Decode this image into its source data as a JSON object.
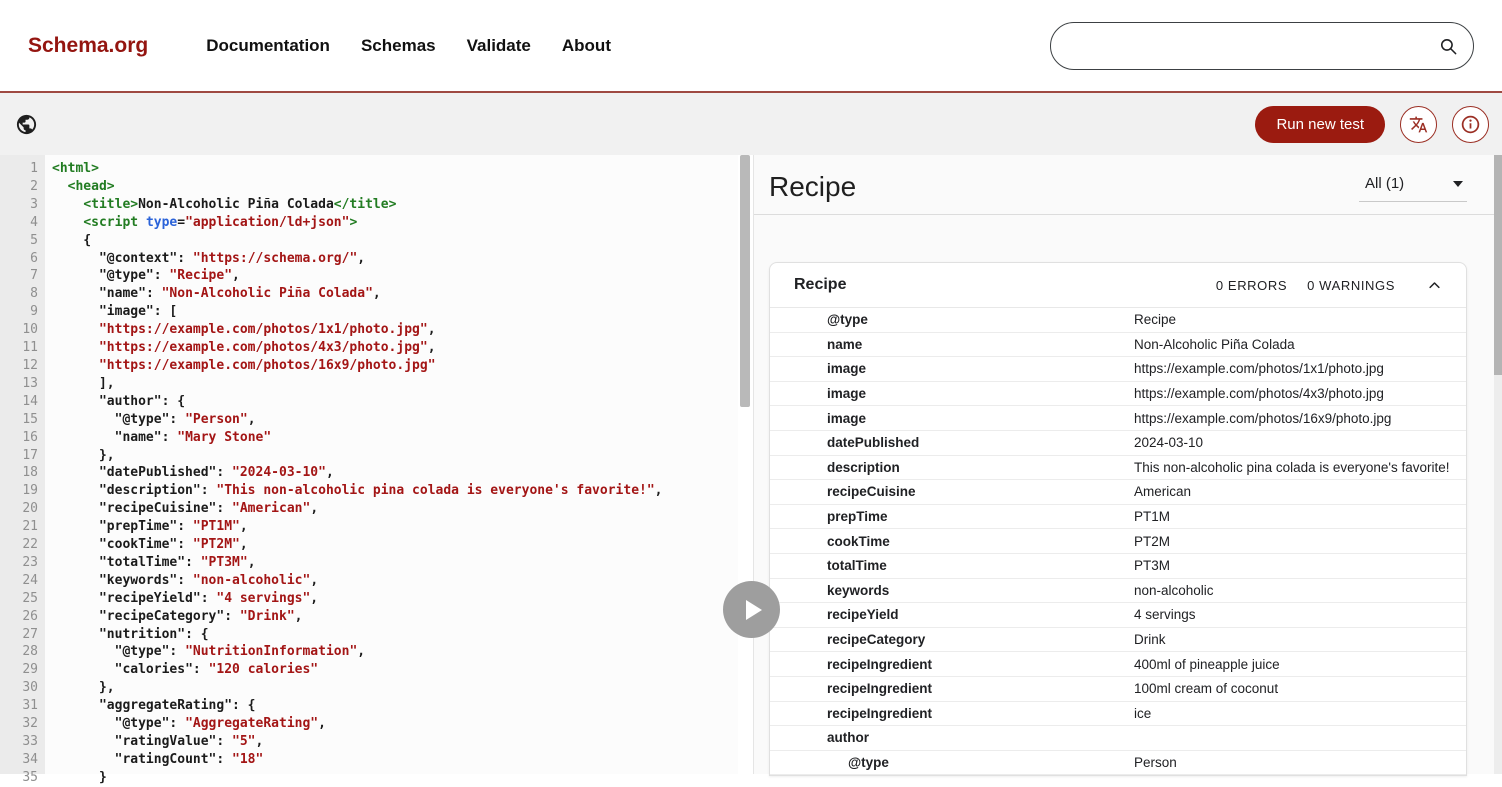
{
  "colors": {
    "brand_red": "#941510",
    "button_red": "#9b1b10",
    "code_tag_green": "#227c22",
    "code_attr_blue": "#2b63d9",
    "code_string_red": "#a31515",
    "toolbar_gray": "#f1f1f1"
  },
  "header": {
    "logo": "Schema.org",
    "nav": [
      "Documentation",
      "Schemas",
      "Validate",
      "About"
    ],
    "search": {
      "value": "",
      "placeholder": ""
    }
  },
  "toolbar": {
    "run_button": "Run new test",
    "language_icon": "translate-icon",
    "info_icon": "info-icon",
    "globe_icon": "globe-icon"
  },
  "editor": {
    "lines": [
      {
        "n": 1,
        "s": [
          [
            "tag",
            "<html>"
          ]
        ]
      },
      {
        "n": 2,
        "s": [
          [
            "tag",
            "  <head>"
          ]
        ]
      },
      {
        "n": 3,
        "s": [
          [
            "pun",
            "    "
          ],
          [
            "tag",
            "<title>"
          ],
          [
            "txt",
            "Non-Alcoholic Piña Colada"
          ],
          [
            "tag",
            "</title>"
          ]
        ]
      },
      {
        "n": 4,
        "s": [
          [
            "pun",
            "    "
          ],
          [
            "tag",
            "<script "
          ],
          [
            "attr",
            "type"
          ],
          [
            "pun",
            "="
          ],
          [
            "str",
            "\"application/ld+json\""
          ],
          [
            "tag",
            ">"
          ]
        ]
      },
      {
        "n": 5,
        "s": [
          [
            "pun",
            "    {"
          ]
        ]
      },
      {
        "n": 6,
        "s": [
          [
            "pun",
            "      "
          ],
          [
            "key",
            "\"@context\""
          ],
          [
            "pun",
            ": "
          ],
          [
            "str",
            "\"https://schema.org/\""
          ],
          [
            "pun",
            ","
          ]
        ]
      },
      {
        "n": 7,
        "s": [
          [
            "pun",
            "      "
          ],
          [
            "key",
            "\"@type\""
          ],
          [
            "pun",
            ": "
          ],
          [
            "str",
            "\"Recipe\""
          ],
          [
            "pun",
            ","
          ]
        ]
      },
      {
        "n": 8,
        "s": [
          [
            "pun",
            "      "
          ],
          [
            "key",
            "\"name\""
          ],
          [
            "pun",
            ": "
          ],
          [
            "str",
            "\"Non-Alcoholic Piña Colada\""
          ],
          [
            "pun",
            ","
          ]
        ]
      },
      {
        "n": 9,
        "s": [
          [
            "pun",
            "      "
          ],
          [
            "key",
            "\"image\""
          ],
          [
            "pun",
            ": ["
          ]
        ]
      },
      {
        "n": 10,
        "s": [
          [
            "pun",
            "      "
          ],
          [
            "str",
            "\"https://example.com/photos/1x1/photo.jpg\""
          ],
          [
            "pun",
            ","
          ]
        ]
      },
      {
        "n": 11,
        "s": [
          [
            "pun",
            "      "
          ],
          [
            "str",
            "\"https://example.com/photos/4x3/photo.jpg\""
          ],
          [
            "pun",
            ","
          ]
        ]
      },
      {
        "n": 12,
        "s": [
          [
            "pun",
            "      "
          ],
          [
            "str",
            "\"https://example.com/photos/16x9/photo.jpg\""
          ]
        ]
      },
      {
        "n": 13,
        "s": [
          [
            "pun",
            "      ],"
          ]
        ]
      },
      {
        "n": 14,
        "s": [
          [
            "pun",
            "      "
          ],
          [
            "key",
            "\"author\""
          ],
          [
            "pun",
            ": {"
          ]
        ]
      },
      {
        "n": 15,
        "s": [
          [
            "pun",
            "        "
          ],
          [
            "key",
            "\"@type\""
          ],
          [
            "pun",
            ": "
          ],
          [
            "str",
            "\"Person\""
          ],
          [
            "pun",
            ","
          ]
        ]
      },
      {
        "n": 16,
        "s": [
          [
            "pun",
            "        "
          ],
          [
            "key",
            "\"name\""
          ],
          [
            "pun",
            ": "
          ],
          [
            "str",
            "\"Mary Stone\""
          ]
        ]
      },
      {
        "n": 17,
        "s": [
          [
            "pun",
            "      },"
          ]
        ]
      },
      {
        "n": 18,
        "s": [
          [
            "pun",
            "      "
          ],
          [
            "key",
            "\"datePublished\""
          ],
          [
            "pun",
            ": "
          ],
          [
            "str",
            "\"2024-03-10\""
          ],
          [
            "pun",
            ","
          ]
        ]
      },
      {
        "n": 19,
        "s": [
          [
            "pun",
            "      "
          ],
          [
            "key",
            "\"description\""
          ],
          [
            "pun",
            ": "
          ],
          [
            "str",
            "\"This non-alcoholic pina colada is everyone's favorite!\""
          ],
          [
            "pun",
            ","
          ]
        ]
      },
      {
        "n": 20,
        "s": [
          [
            "pun",
            "      "
          ],
          [
            "key",
            "\"recipeCuisine\""
          ],
          [
            "pun",
            ": "
          ],
          [
            "str",
            "\"American\""
          ],
          [
            "pun",
            ","
          ]
        ]
      },
      {
        "n": 21,
        "s": [
          [
            "pun",
            "      "
          ],
          [
            "key",
            "\"prepTime\""
          ],
          [
            "pun",
            ": "
          ],
          [
            "str",
            "\"PT1M\""
          ],
          [
            "pun",
            ","
          ]
        ]
      },
      {
        "n": 22,
        "s": [
          [
            "pun",
            "      "
          ],
          [
            "key",
            "\"cookTime\""
          ],
          [
            "pun",
            ": "
          ],
          [
            "str",
            "\"PT2M\""
          ],
          [
            "pun",
            ","
          ]
        ]
      },
      {
        "n": 23,
        "s": [
          [
            "pun",
            "      "
          ],
          [
            "key",
            "\"totalTime\""
          ],
          [
            "pun",
            ": "
          ],
          [
            "str",
            "\"PT3M\""
          ],
          [
            "pun",
            ","
          ]
        ]
      },
      {
        "n": 24,
        "s": [
          [
            "pun",
            "      "
          ],
          [
            "key",
            "\"keywords\""
          ],
          [
            "pun",
            ": "
          ],
          [
            "str",
            "\"non-alcoholic\""
          ],
          [
            "pun",
            ","
          ]
        ]
      },
      {
        "n": 25,
        "s": [
          [
            "pun",
            "      "
          ],
          [
            "key",
            "\"recipeYield\""
          ],
          [
            "pun",
            ": "
          ],
          [
            "str",
            "\"4 servings\""
          ],
          [
            "pun",
            ","
          ]
        ]
      },
      {
        "n": 26,
        "s": [
          [
            "pun",
            "      "
          ],
          [
            "key",
            "\"recipeCategory\""
          ],
          [
            "pun",
            ": "
          ],
          [
            "str",
            "\"Drink\""
          ],
          [
            "pun",
            ","
          ]
        ]
      },
      {
        "n": 27,
        "s": [
          [
            "pun",
            "      "
          ],
          [
            "key",
            "\"nutrition\""
          ],
          [
            "pun",
            ": {"
          ]
        ]
      },
      {
        "n": 28,
        "s": [
          [
            "pun",
            "        "
          ],
          [
            "key",
            "\"@type\""
          ],
          [
            "pun",
            ": "
          ],
          [
            "str",
            "\"NutritionInformation\""
          ],
          [
            "pun",
            ","
          ]
        ]
      },
      {
        "n": 29,
        "s": [
          [
            "pun",
            "        "
          ],
          [
            "key",
            "\"calories\""
          ],
          [
            "pun",
            ": "
          ],
          [
            "str",
            "\"120 calories\""
          ]
        ]
      },
      {
        "n": 30,
        "s": [
          [
            "pun",
            "      },"
          ]
        ]
      },
      {
        "n": 31,
        "s": [
          [
            "pun",
            "      "
          ],
          [
            "key",
            "\"aggregateRating\""
          ],
          [
            "pun",
            ": {"
          ]
        ]
      },
      {
        "n": 32,
        "s": [
          [
            "pun",
            "        "
          ],
          [
            "key",
            "\"@type\""
          ],
          [
            "pun",
            ": "
          ],
          [
            "str",
            "\"AggregateRating\""
          ],
          [
            "pun",
            ","
          ]
        ]
      },
      {
        "n": 33,
        "s": [
          [
            "pun",
            "        "
          ],
          [
            "key",
            "\"ratingValue\""
          ],
          [
            "pun",
            ": "
          ],
          [
            "str",
            "\"5\""
          ],
          [
            "pun",
            ","
          ]
        ]
      },
      {
        "n": 34,
        "s": [
          [
            "pun",
            "        "
          ],
          [
            "key",
            "\"ratingCount\""
          ],
          [
            "pun",
            ": "
          ],
          [
            "str",
            "\"18\""
          ]
        ]
      },
      {
        "n": 35,
        "s": [
          [
            "pun",
            "      }"
          ]
        ]
      }
    ]
  },
  "results": {
    "title": "Recipe",
    "filter_label": "All (1)",
    "card": {
      "title": "Recipe",
      "errors": "0 ERRORS",
      "warnings": "0 WARNINGS"
    },
    "rows": [
      {
        "key": "@type",
        "value": "Recipe",
        "level": 1
      },
      {
        "key": "name",
        "value": "Non-Alcoholic Piña Colada",
        "level": 1
      },
      {
        "key": "image",
        "value": "https://example.com/photos/1x1/photo.jpg",
        "level": 1
      },
      {
        "key": "image",
        "value": "https://example.com/photos/4x3/photo.jpg",
        "level": 1
      },
      {
        "key": "image",
        "value": "https://example.com/photos/16x9/photo.jpg",
        "level": 1
      },
      {
        "key": "datePublished",
        "value": "2024-03-10",
        "level": 1
      },
      {
        "key": "description",
        "value": "This non-alcoholic pina colada is everyone's favorite!",
        "level": 1
      },
      {
        "key": "recipeCuisine",
        "value": "American",
        "level": 1
      },
      {
        "key": "prepTime",
        "value": "PT1M",
        "level": 1
      },
      {
        "key": "cookTime",
        "value": "PT2M",
        "level": 1
      },
      {
        "key": "totalTime",
        "value": "PT3M",
        "level": 1
      },
      {
        "key": "keywords",
        "value": "non-alcoholic",
        "level": 1
      },
      {
        "key": "recipeYield",
        "value": "4 servings",
        "level": 1
      },
      {
        "key": "recipeCategory",
        "value": "Drink",
        "level": 1
      },
      {
        "key": "recipeIngredient",
        "value": "400ml of pineapple juice",
        "level": 1
      },
      {
        "key": "recipeIngredient",
        "value": "100ml cream of coconut",
        "level": 1
      },
      {
        "key": "recipeIngredient",
        "value": "ice",
        "level": 1
      },
      {
        "key": "author",
        "value": "",
        "level": 1
      },
      {
        "key": "@type",
        "value": "Person",
        "level": 2
      }
    ]
  }
}
